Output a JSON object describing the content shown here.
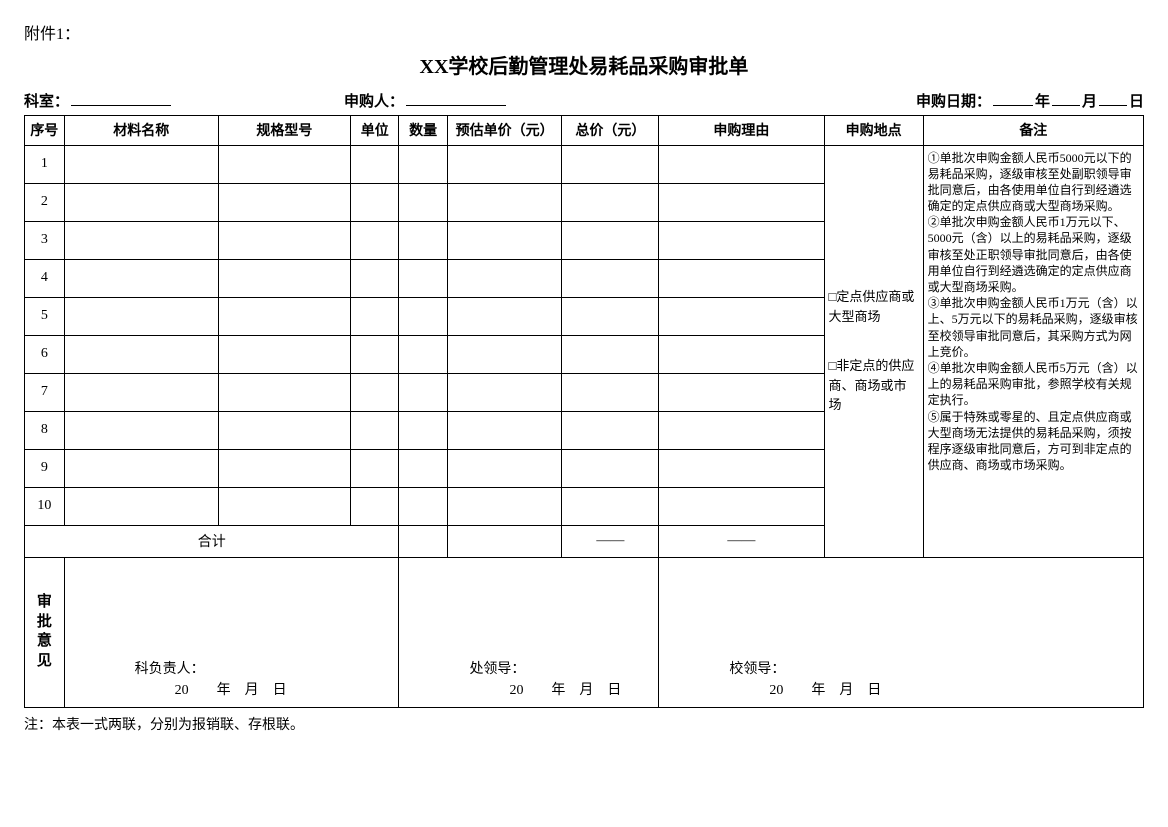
{
  "attachment_label": "附件1：",
  "title": "XX学校后勤管理处易耗品采购审批单",
  "header": {
    "dept_label": "科室：",
    "applicant_label": "申购人：",
    "date_label": "申购日期：",
    "year_unit": "年",
    "month_unit": "月",
    "day_unit": "日"
  },
  "columns": {
    "seq": "序号",
    "name": "材料名称",
    "spec": "规格型号",
    "unit": "单位",
    "qty": "数量",
    "price": "预估单价（元）",
    "total": "总价（元）",
    "reason": "申购理由",
    "location": "申购地点",
    "note": "备注"
  },
  "rows": [
    1,
    2,
    3,
    4,
    5,
    6,
    7,
    8,
    9,
    10
  ],
  "sum_row": {
    "label": "合计",
    "dash": "——"
  },
  "location_options": {
    "opt1": "□定点供应商或大型商场",
    "opt2": "□非定点的供应商、商场或市场"
  },
  "notes": {
    "p1": "①单批次申购金额人民币5000元以下的易耗品采购，逐级审核至处副职领导审批同意后，由各使用单位自行到经遴选确定的定点供应商或大型商场采购。",
    "p2": "②单批次申购金额人民币1万元以下、5000元（含）以上的易耗品采购，逐级审核至处正职领导审批同意后，由各使用单位自行到经遴选确定的定点供应商或大型商场采购。",
    "p3": "③单批次申购金额人民币1万元（含）以上、5万元以下的易耗品采购，逐级审核至校领导审批同意后，其采购方式为网上竞价。",
    "p4": "④单批次申购金额人民币5万元（含）以上的易耗品采购审批，参照学校有关规定执行。",
    "p5": "⑤属于特殊或零星的、且定点供应商或大型商场无法提供的易耗品采购，须按程序逐级审批同意后，方可到非定点的供应商、商场或市场采购。"
  },
  "approval": {
    "label_chars": [
      "审",
      "批",
      "意",
      "见"
    ],
    "sig1_title": "科负责人：",
    "sig2_title": "处领导：",
    "sig3_title": "校领导：",
    "date_prefix": "20",
    "year": "年",
    "month": "月",
    "day": "日"
  },
  "footer": "注：本表一式两联，分别为报销联、存根联。"
}
